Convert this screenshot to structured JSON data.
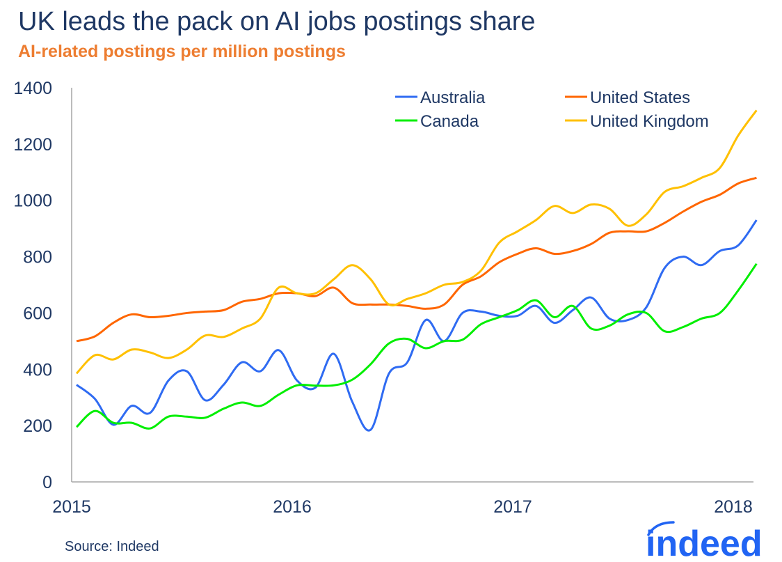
{
  "title": "UK leads the pack on AI jobs postings share",
  "subtitle": "AI-related postings per million postings",
  "source": "Source: Indeed",
  "logo_text": "indeed",
  "chart_data": {
    "type": "line",
    "title": "UK leads the pack on AI jobs postings share",
    "subtitle": "AI-related postings per million postings",
    "xlabel": "",
    "ylabel": "",
    "ylim": [
      0,
      1400
    ],
    "yticks": [
      0,
      200,
      400,
      600,
      800,
      1000,
      1200,
      1400
    ],
    "xticks": [
      "2015",
      "2016",
      "2017",
      "2018"
    ],
    "grid": false,
    "legend_position": "top-right",
    "x": [
      "2015-01",
      "2015-02",
      "2015-03",
      "2015-04",
      "2015-05",
      "2015-06",
      "2015-07",
      "2015-08",
      "2015-09",
      "2015-10",
      "2015-11",
      "2015-12",
      "2016-01",
      "2016-02",
      "2016-03",
      "2016-04",
      "2016-05",
      "2016-06",
      "2016-07",
      "2016-08",
      "2016-09",
      "2016-10",
      "2016-11",
      "2016-12",
      "2017-01",
      "2017-02",
      "2017-03",
      "2017-04",
      "2017-05",
      "2017-06",
      "2017-07",
      "2017-08",
      "2017-09",
      "2017-10",
      "2017-11",
      "2017-12",
      "2018-01",
      "2018-02"
    ],
    "series": [
      {
        "name": "Australia",
        "color": "#2f6bf2",
        "values": [
          345,
          295,
          203,
          270,
          245,
          360,
          393,
          290,
          345,
          425,
          393,
          468,
          360,
          335,
          455,
          285,
          185,
          385,
          425,
          575,
          500,
          600,
          605,
          590,
          590,
          625,
          565,
          610,
          655,
          580,
          575,
          620,
          760,
          800,
          770,
          820,
          840,
          930
        ]
      },
      {
        "name": "United States",
        "color": "#ff6600",
        "values": [
          500,
          517,
          565,
          595,
          585,
          590,
          600,
          605,
          610,
          640,
          650,
          670,
          670,
          660,
          690,
          635,
          630,
          630,
          625,
          615,
          630,
          700,
          730,
          780,
          810,
          830,
          810,
          820,
          845,
          885,
          890,
          890,
          920,
          960,
          995,
          1020,
          1060,
          1080
        ]
      },
      {
        "name": "Canada",
        "color": "#00ee00",
        "values": [
          195,
          252,
          210,
          210,
          190,
          232,
          232,
          228,
          260,
          282,
          270,
          310,
          343,
          342,
          343,
          363,
          418,
          492,
          508,
          475,
          500,
          505,
          560,
          585,
          610,
          645,
          585,
          625,
          545,
          555,
          595,
          600,
          535,
          550,
          580,
          600,
          680,
          775
        ]
      },
      {
        "name": "United Kingdom",
        "color": "#ffc000",
        "values": [
          385,
          450,
          435,
          470,
          460,
          440,
          470,
          520,
          515,
          545,
          580,
          690,
          670,
          670,
          720,
          770,
          720,
          630,
          650,
          670,
          700,
          710,
          750,
          850,
          890,
          930,
          980,
          955,
          985,
          970,
          910,
          950,
          1030,
          1050,
          1080,
          1115,
          1230,
          1320
        ]
      }
    ]
  }
}
